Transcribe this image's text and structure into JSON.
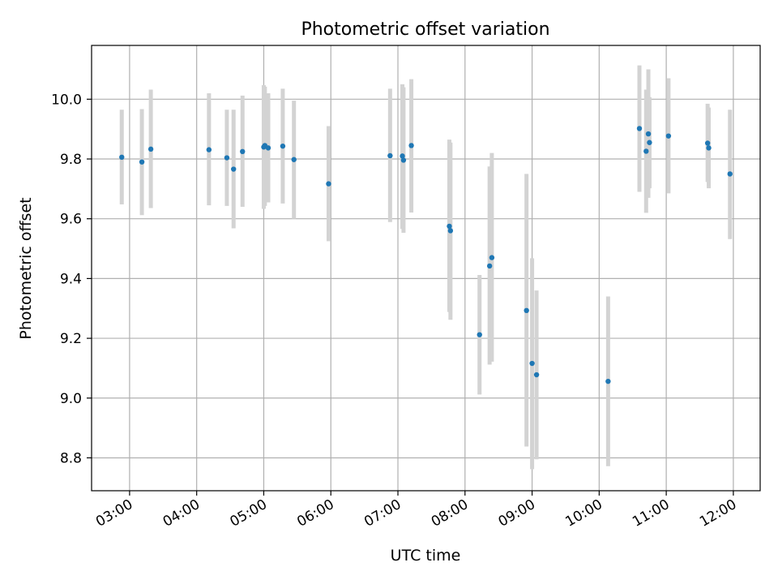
{
  "chart_data": {
    "type": "scatter",
    "title": "Photometric offset variation",
    "xlabel": "UTC time",
    "ylabel": "Photometric offset",
    "x_axis_type": "time",
    "xlim": [
      "02:26",
      "12:24"
    ],
    "ylim": [
      8.69,
      10.18
    ],
    "x_ticks": [
      "03:00",
      "04:00",
      "05:00",
      "06:00",
      "07:00",
      "08:00",
      "09:00",
      "10:00",
      "11:00",
      "12:00"
    ],
    "y_ticks": [
      "8.8",
      "9.0",
      "9.2",
      "9.4",
      "9.6",
      "9.8",
      "10.0"
    ],
    "grid": true,
    "legend": "none",
    "colors": {
      "points": "#1f77b4",
      "error_bars": "#d3d3d3",
      "grid": "#b0b0b0"
    },
    "series": [
      {
        "points": [
          {
            "x": "02:53",
            "y": 9.806,
            "low": 9.648,
            "high": 9.965
          },
          {
            "x": "03:11",
            "y": 9.79,
            "low": 9.612,
            "high": 9.967
          },
          {
            "x": "03:19",
            "y": 9.833,
            "low": 9.636,
            "high": 10.032
          },
          {
            "x": "04:11",
            "y": 9.831,
            "low": 9.645,
            "high": 10.02
          },
          {
            "x": "04:27",
            "y": 9.804,
            "low": 9.643,
            "high": 9.965
          },
          {
            "x": "04:33",
            "y": 9.766,
            "low": 9.568,
            "high": 9.965
          },
          {
            "x": "04:41",
            "y": 9.825,
            "low": 9.64,
            "high": 10.012
          },
          {
            "x": "05:00",
            "y": 9.84,
            "low": 9.633,
            "high": 10.047
          },
          {
            "x": "05:01",
            "y": 9.845,
            "low": 9.643,
            "high": 10.042
          },
          {
            "x": "05:04",
            "y": 9.837,
            "low": 9.655,
            "high": 10.02
          },
          {
            "x": "05:17",
            "y": 9.843,
            "low": 9.651,
            "high": 10.035
          },
          {
            "x": "05:27",
            "y": 9.798,
            "low": 9.6,
            "high": 9.995
          },
          {
            "x": "05:58",
            "y": 9.717,
            "low": 9.525,
            "high": 9.91
          },
          {
            "x": "06:53",
            "y": 9.811,
            "low": 9.589,
            "high": 10.035
          },
          {
            "x": "07:04",
            "y": 9.81,
            "low": 9.566,
            "high": 10.05
          },
          {
            "x": "07:05",
            "y": 9.796,
            "low": 9.553,
            "high": 10.04
          },
          {
            "x": "07:12",
            "y": 9.845,
            "low": 9.621,
            "high": 10.067
          },
          {
            "x": "07:46",
            "y": 9.575,
            "low": 9.288,
            "high": 9.865
          },
          {
            "x": "07:47",
            "y": 9.56,
            "low": 9.262,
            "high": 9.855
          },
          {
            "x": "08:13",
            "y": 9.212,
            "low": 9.012,
            "high": 9.412
          },
          {
            "x": "08:22",
            "y": 9.442,
            "low": 9.112,
            "high": 9.775
          },
          {
            "x": "08:24",
            "y": 9.47,
            "low": 9.122,
            "high": 9.82
          },
          {
            "x": "08:55",
            "y": 9.293,
            "low": 8.838,
            "high": 9.75
          },
          {
            "x": "09:00",
            "y": 9.116,
            "low": 8.762,
            "high": 9.468
          },
          {
            "x": "09:04",
            "y": 9.078,
            "low": 8.795,
            "high": 9.36
          },
          {
            "x": "10:08",
            "y": 9.056,
            "low": 8.772,
            "high": 9.34
          },
          {
            "x": "10:36",
            "y": 9.902,
            "low": 9.69,
            "high": 10.113
          },
          {
            "x": "10:42",
            "y": 9.826,
            "low": 9.62,
            "high": 10.032
          },
          {
            "x": "10:44",
            "y": 9.884,
            "low": 9.67,
            "high": 10.1
          },
          {
            "x": "10:45",
            "y": 9.855,
            "low": 9.702,
            "high": 10.007
          },
          {
            "x": "11:02",
            "y": 9.877,
            "low": 9.685,
            "high": 10.07
          },
          {
            "x": "11:37",
            "y": 9.853,
            "low": 9.723,
            "high": 9.985
          },
          {
            "x": "11:38",
            "y": 9.837,
            "low": 9.702,
            "high": 9.972
          },
          {
            "x": "11:57",
            "y": 9.75,
            "low": 9.532,
            "high": 9.965
          }
        ]
      }
    ]
  }
}
